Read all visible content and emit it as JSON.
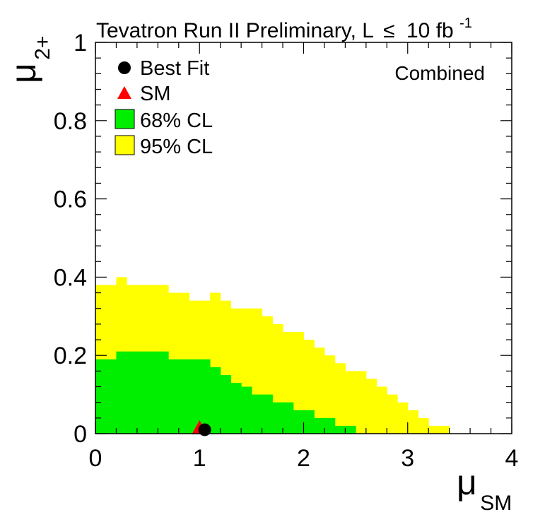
{
  "chart_data": {
    "type": "heatmap",
    "title": "Tevatron Run II Preliminary, L",
    "title_le": "≤",
    "title_lumi": "10 fb",
    "title_lumi_exp": "-1",
    "annotation": "Combined",
    "xlabel_main": "μ",
    "xlabel_sub": "SM",
    "ylabel_main": "μ",
    "ylabel_sub": "2+",
    "xlim": [
      0,
      4
    ],
    "ylim": [
      0,
      1
    ],
    "x_ticks": [
      {
        "value": 0,
        "label": "0"
      },
      {
        "value": 1,
        "label": "1"
      },
      {
        "value": 2,
        "label": "2"
      },
      {
        "value": 3,
        "label": "3"
      },
      {
        "value": 4,
        "label": "4"
      }
    ],
    "y_ticks": [
      {
        "value": 0,
        "label": "0"
      },
      {
        "value": 0.2,
        "label": "0.2"
      },
      {
        "value": 0.4,
        "label": "0.4"
      },
      {
        "value": 0.6,
        "label": "0.6"
      },
      {
        "value": 0.8,
        "label": "0.8"
      },
      {
        "value": 1,
        "label": "1"
      }
    ],
    "legend": [
      {
        "label": "Best Fit",
        "marker": "circle",
        "color": "#000000"
      },
      {
        "label": "SM",
        "marker": "triangle",
        "color": "#ff0000"
      },
      {
        "label": "68% CL",
        "marker": "box",
        "color": "#00ee00"
      },
      {
        "label": "95% CL",
        "marker": "box",
        "color": "#ffff00"
      }
    ],
    "bin_width": 0.1,
    "regions": [
      {
        "name": "95% CL",
        "color": "#ffff00",
        "upper_edge": [
          0.38,
          0.38,
          0.4,
          0.38,
          0.38,
          0.38,
          0.38,
          0.36,
          0.36,
          0.34,
          0.34,
          0.36,
          0.34,
          0.32,
          0.32,
          0.32,
          0.3,
          0.28,
          0.26,
          0.26,
          0.24,
          0.22,
          0.2,
          0.18,
          0.16,
          0.16,
          0.14,
          0.12,
          0.1,
          0.08,
          0.06,
          0.04,
          0.02,
          0.02,
          0.0,
          0.0,
          0.0,
          0.0,
          0.0,
          0.0
        ]
      },
      {
        "name": "68% CL",
        "color": "#00ee00",
        "upper_edge": [
          0.19,
          0.19,
          0.21,
          0.21,
          0.21,
          0.21,
          0.21,
          0.19,
          0.19,
          0.19,
          0.19,
          0.17,
          0.15,
          0.13,
          0.12,
          0.1,
          0.1,
          0.08,
          0.08,
          0.06,
          0.06,
          0.04,
          0.04,
          0.02,
          0.02,
          0.0,
          0.0,
          0.0,
          0.0,
          0.0,
          0.0,
          0.0,
          0.0,
          0.0,
          0.0,
          0.0,
          0.0,
          0.0,
          0.0,
          0.0
        ]
      }
    ],
    "best_fit": {
      "x": 1.05,
      "y": 0.01,
      "color": "#000000"
    },
    "sm_point": {
      "x": 1.0,
      "y": 0.0,
      "color": "#ff0000"
    }
  }
}
